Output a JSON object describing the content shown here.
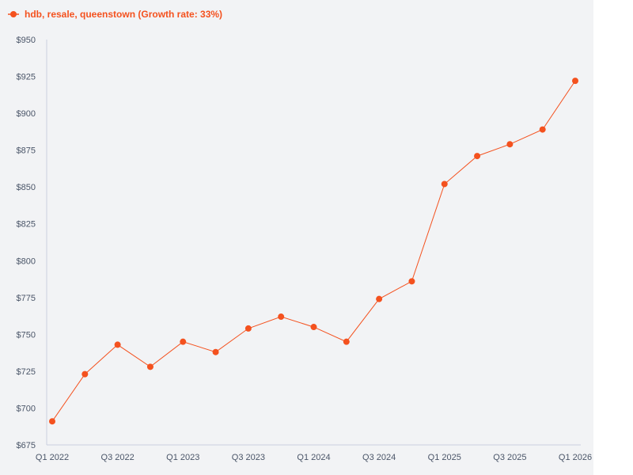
{
  "colors": {
    "series": "#f4511e",
    "panel_background": "#f2f3f5",
    "axis_line": "#c9cfe0",
    "tick_label": "#4a5568"
  },
  "legend": {
    "label": "hdb, resale, queenstown (Growth rate: 33%)",
    "placement": "top-left",
    "icon": "line-with-dot-icon"
  },
  "chart_data": {
    "type": "line",
    "title": "",
    "xlabel": "",
    "ylabel": "",
    "x": [
      "Q1 2022",
      "Q2 2022",
      "Q3 2022",
      "Q4 2022",
      "Q1 2023",
      "Q2 2023",
      "Q3 2023",
      "Q4 2023",
      "Q1 2024",
      "Q2 2024",
      "Q3 2024",
      "Q4 2024",
      "Q1 2025",
      "Q2 2025",
      "Q3 2025",
      "Q4 2025",
      "Q1 2026"
    ],
    "x_tick_labels": [
      "Q1 2022",
      "Q3 2022",
      "Q1 2023",
      "Q3 2023",
      "Q1 2024",
      "Q3 2024",
      "Q1 2025",
      "Q3 2025",
      "Q1 2026"
    ],
    "series": [
      {
        "name": "hdb, resale, queenstown (Growth rate: 33%)",
        "values": [
          691,
          723,
          743,
          728,
          745,
          738,
          754,
          762,
          755,
          745,
          774,
          786,
          852,
          871,
          879,
          889,
          922
        ]
      }
    ],
    "ylim": [
      675,
      950
    ],
    "y_ticks": [
      675,
      700,
      725,
      750,
      775,
      800,
      825,
      850,
      875,
      900,
      925,
      950
    ],
    "y_tick_prefix": "$",
    "grid": false
  }
}
